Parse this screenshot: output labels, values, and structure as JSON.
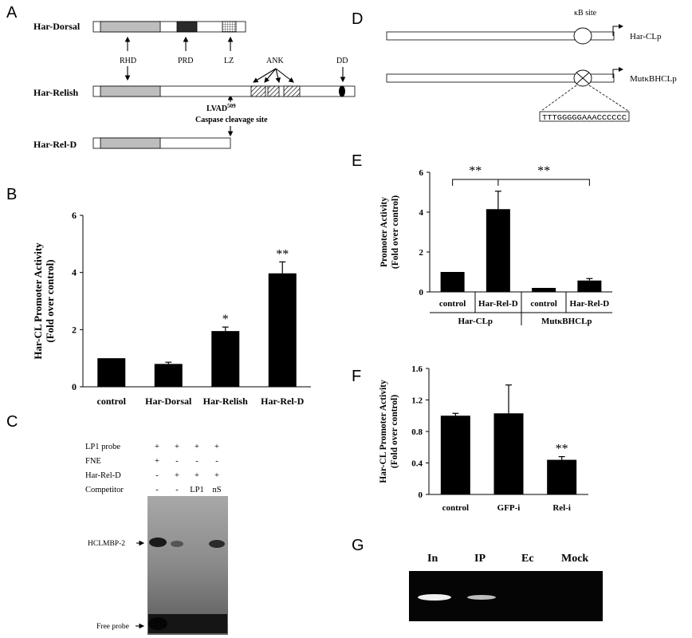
{
  "panels": {
    "A": {
      "letter": "A",
      "constructs": [
        "Har-Dorsal",
        "Har-Relish",
        "Har-Rel-D"
      ],
      "domains": [
        "RHD",
        "PRD",
        "LZ",
        "ANK",
        "DD"
      ],
      "cleavage_site": "LVAD",
      "cleavage_superscript": "509",
      "cleavage_label": "Caspase cleavage site"
    },
    "B": {
      "letter": "B",
      "chart_data": {
        "type": "bar",
        "categories": [
          "control",
          "Har-Dorsal",
          "Har-Relish",
          "Har-Rel-D"
        ],
        "values": [
          1.0,
          0.8,
          1.95,
          3.97
        ],
        "errors": [
          0.0,
          0.06,
          0.14,
          0.4
        ],
        "significance": [
          "",
          "",
          "*",
          "**"
        ],
        "ylabel_line1": "Har-CL Promoter Activity",
        "ylabel_line2": "(Fold over control)",
        "ylim": [
          0,
          6
        ],
        "yticks": [
          "0",
          "2",
          "4",
          "6"
        ],
        "bar_color": "#000000"
      }
    },
    "C": {
      "letter": "C",
      "rows": [
        {
          "label": "LP1 probe",
          "cells": [
            "+",
            "+",
            "+",
            "+"
          ]
        },
        {
          "label": "FNE",
          "cells": [
            "+",
            "-",
            "-",
            "-"
          ]
        },
        {
          "label": "Har-Rel-D",
          "cells": [
            "-",
            "+",
            "+",
            "+"
          ]
        },
        {
          "label": "Competitor",
          "cells": [
            "-",
            "-",
            "LP1",
            "nS"
          ]
        }
      ],
      "band_labels": [
        "HCLMBP-2",
        "Free probe"
      ]
    },
    "D": {
      "letter": "D",
      "site_label": "κB site",
      "constructs": [
        "Har-CLp",
        "MutκBHCLp"
      ],
      "mutant_sequence": "TTTGGGGGAAACCCCCC"
    },
    "E": {
      "letter": "E",
      "chart_data": {
        "type": "bar",
        "categories": [
          "control",
          "Har-Rel-D",
          "control",
          "Har-Rel-D"
        ],
        "groups": [
          "Har-CLp",
          "MutκBHCLp"
        ],
        "values": [
          1.0,
          4.15,
          0.2,
          0.57
        ],
        "errors": [
          0.0,
          0.9,
          0.0,
          0.1
        ],
        "significance_brackets": [
          "**",
          "**"
        ],
        "ylabel_line1": "Promoter Activity",
        "ylabel_line2": "(Fold over control)",
        "ylim": [
          0,
          6
        ],
        "yticks": [
          "0",
          "2",
          "4",
          "6"
        ],
        "bar_color": "#000000"
      }
    },
    "F": {
      "letter": "F",
      "chart_data": {
        "type": "bar",
        "categories": [
          "control",
          "GFP-i",
          "Rel-i"
        ],
        "values": [
          1.0,
          1.03,
          0.44
        ],
        "errors": [
          0.03,
          0.36,
          0.04
        ],
        "significance": [
          "",
          "",
          "**"
        ],
        "ylabel_line1": "Har-CL Promoter Activity",
        "ylabel_line2": "(Fold over control)",
        "ylim": [
          0,
          1.6
        ],
        "yticks": [
          "0",
          "0.4",
          "0.8",
          "1.2",
          "1.6"
        ],
        "bar_color": "#000000"
      }
    },
    "G": {
      "letter": "G",
      "lanes": [
        "In",
        "IP",
        "Ec",
        "Mock"
      ]
    }
  }
}
